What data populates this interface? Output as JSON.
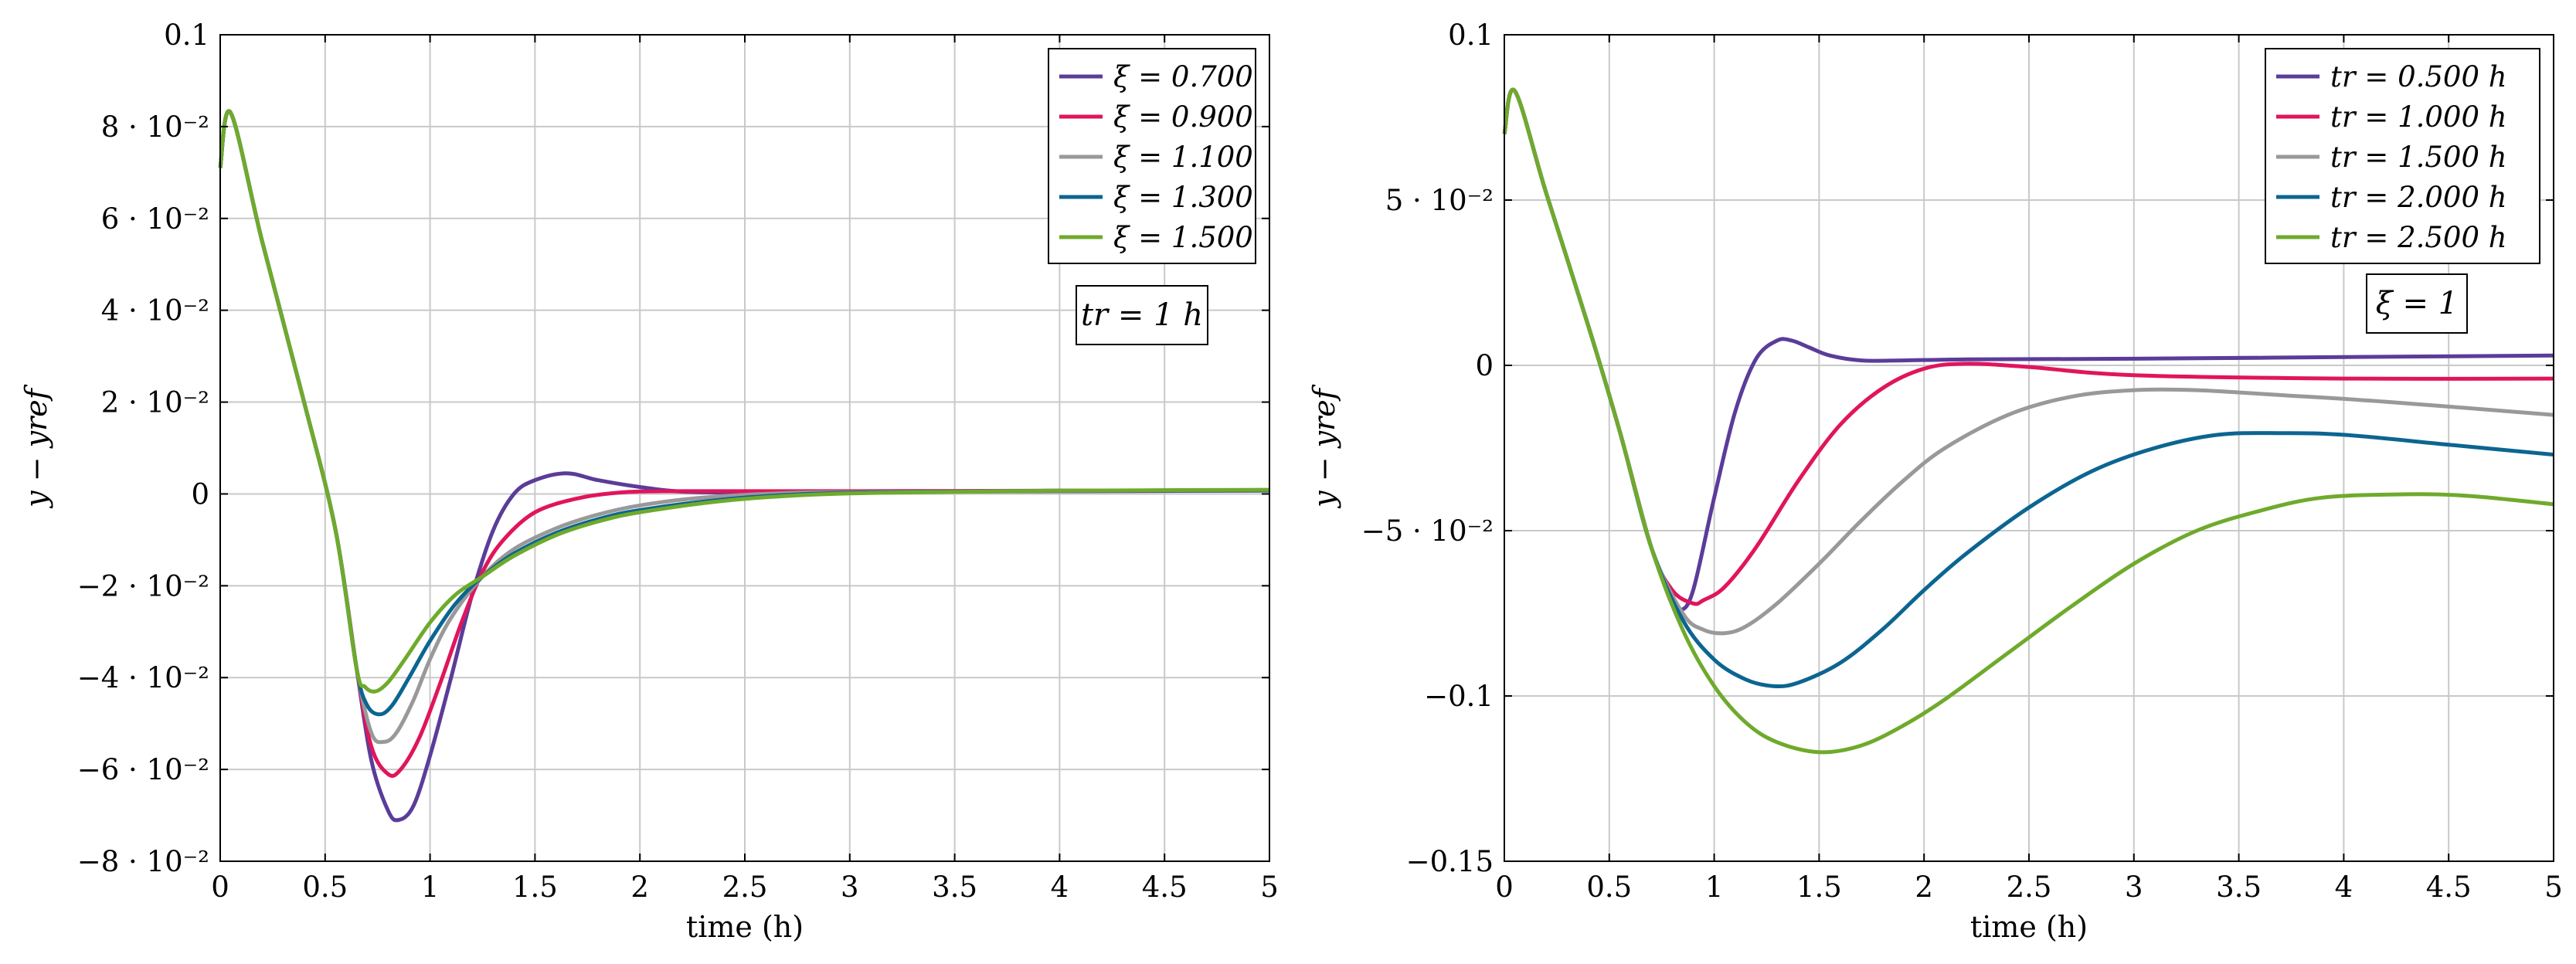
{
  "colors": {
    "purple": "#5b3c99",
    "pink": "#e0155c",
    "gray": "#999999",
    "blue": "#0c6591",
    "green": "#6faa2c",
    "grid": "#c9c9c9"
  },
  "chart_data": [
    {
      "type": "line",
      "xlabel": "time (h)",
      "ylabel": "y − yref",
      "xlim": [
        0,
        5
      ],
      "ylim": [
        -0.08,
        0.1
      ],
      "grid": true,
      "legend_position": "top-right",
      "xticks": [
        "0",
        "0.5",
        "1",
        "1.5",
        "2",
        "2.5",
        "3",
        "3.5",
        "4",
        "4.5",
        "5"
      ],
      "yticks": [
        "0.1",
        "8 · 10⁻²",
        "6 · 10⁻²",
        "4 · 10⁻²",
        "2 · 10⁻²",
        "0",
        "−2 · 10⁻²",
        "−4 · 10⁻²",
        "−6 · 10⁻²",
        "−8 · 10⁻²"
      ],
      "annotation": "tr = 1 h",
      "series": [
        {
          "name": "ξ = 0.700",
          "color": "#5b3c99",
          "x": [
            0,
            0.05,
            0.2,
            0.4,
            0.55,
            0.65,
            0.72,
            0.8,
            0.85,
            0.92,
            1.0,
            1.1,
            1.2,
            1.3,
            1.4,
            1.5,
            1.65,
            1.8,
            2.0,
            2.2,
            2.5,
            3.0,
            3.5,
            4.0,
            5.0
          ],
          "y": [
            0.071,
            0.083,
            0.055,
            0.02,
            -0.008,
            -0.038,
            -0.058,
            -0.069,
            -0.071,
            -0.068,
            -0.057,
            -0.04,
            -0.022,
            -0.008,
            0.0,
            0.003,
            0.0045,
            0.003,
            0.0015,
            0.0005,
            0.0003,
            0.0004,
            0.0005,
            0.0006,
            0.0007
          ]
        },
        {
          "name": "ξ = 0.900",
          "color": "#e0155c",
          "x": [
            0,
            0.05,
            0.2,
            0.4,
            0.55,
            0.65,
            0.72,
            0.8,
            0.86,
            0.95,
            1.05,
            1.15,
            1.25,
            1.35,
            1.5,
            1.7,
            1.9,
            2.1,
            2.5,
            3.0,
            4.0,
            5.0
          ],
          "y": [
            0.071,
            0.083,
            0.055,
            0.02,
            -0.008,
            -0.038,
            -0.055,
            -0.061,
            -0.06,
            -0.053,
            -0.041,
            -0.028,
            -0.017,
            -0.01,
            -0.004,
            -0.001,
            0.0003,
            0.0006,
            0.0006,
            0.0006,
            0.0007,
            0.0008
          ]
        },
        {
          "name": "ξ = 1.100",
          "color": "#999999",
          "x": [
            0,
            0.05,
            0.2,
            0.4,
            0.55,
            0.65,
            0.72,
            0.78,
            0.84,
            0.92,
            1.0,
            1.1,
            1.25,
            1.4,
            1.6,
            1.8,
            2.0,
            2.3,
            2.7,
            3.0,
            4.0,
            5.0
          ],
          "y": [
            0.071,
            0.083,
            0.055,
            0.02,
            -0.008,
            -0.038,
            -0.052,
            -0.054,
            -0.052,
            -0.045,
            -0.036,
            -0.027,
            -0.018,
            -0.012,
            -0.0075,
            -0.0045,
            -0.0025,
            -0.0008,
            0.0002,
            0.0004,
            0.0007,
            0.0008
          ]
        },
        {
          "name": "ξ = 1.300",
          "color": "#0c6591",
          "x": [
            0,
            0.05,
            0.2,
            0.4,
            0.55,
            0.65,
            0.7,
            0.76,
            0.82,
            0.9,
            1.0,
            1.12,
            1.25,
            1.4,
            1.6,
            1.8,
            2.0,
            2.4,
            2.8,
            3.2,
            4.0,
            5.0
          ],
          "y": [
            0.071,
            0.083,
            0.055,
            0.02,
            -0.008,
            -0.038,
            -0.046,
            -0.048,
            -0.046,
            -0.04,
            -0.032,
            -0.024,
            -0.018,
            -0.013,
            -0.0085,
            -0.0055,
            -0.0035,
            -0.0012,
            0.0,
            0.0004,
            0.0007,
            0.0008
          ]
        },
        {
          "name": "ξ = 1.500",
          "color": "#6faa2c",
          "x": [
            0,
            0.05,
            0.2,
            0.4,
            0.55,
            0.65,
            0.69,
            0.74,
            0.8,
            0.88,
            1.0,
            1.12,
            1.25,
            1.4,
            1.6,
            1.8,
            2.0,
            2.4,
            2.8,
            3.2,
            4.0,
            5.0
          ],
          "y": [
            0.071,
            0.083,
            0.055,
            0.02,
            -0.008,
            -0.038,
            -0.042,
            -0.043,
            -0.041,
            -0.036,
            -0.028,
            -0.022,
            -0.018,
            -0.0135,
            -0.009,
            -0.006,
            -0.004,
            -0.0015,
            -0.0002,
            0.0003,
            0.0007,
            0.0009
          ]
        }
      ]
    },
    {
      "type": "line",
      "xlabel": "time (h)",
      "ylabel": "y − yref",
      "xlim": [
        0,
        5
      ],
      "ylim": [
        -0.15,
        0.1
      ],
      "grid": true,
      "legend_position": "top-right",
      "xticks": [
        "0",
        "0.5",
        "1",
        "1.5",
        "2",
        "2.5",
        "3",
        "3.5",
        "4",
        "4.5",
        "5"
      ],
      "yticks": [
        "0.1",
        "5 · 10⁻²",
        "0",
        "−5 · 10⁻²",
        "−0.1",
        "−0.15"
      ],
      "annotation": "ξ = 1",
      "series": [
        {
          "name": "tr = 0.500 h",
          "color": "#5b3c99",
          "x": [
            0,
            0.05,
            0.2,
            0.4,
            0.55,
            0.7,
            0.8,
            0.84,
            0.9,
            1.0,
            1.1,
            1.2,
            1.3,
            1.37,
            1.45,
            1.55,
            1.7,
            1.9,
            2.2,
            3.0,
            4.0,
            5.0
          ],
          "y": [
            0.07,
            0.083,
            0.052,
            0.012,
            -0.02,
            -0.055,
            -0.07,
            -0.074,
            -0.068,
            -0.04,
            -0.014,
            0.002,
            0.0075,
            0.0075,
            0.0055,
            0.003,
            0.0015,
            0.0015,
            0.0018,
            0.002,
            0.0025,
            0.003
          ]
        },
        {
          "name": "tr = 1.000 h",
          "color": "#e0155c",
          "x": [
            0,
            0.05,
            0.2,
            0.4,
            0.55,
            0.7,
            0.8,
            0.9,
            0.95,
            1.05,
            1.2,
            1.4,
            1.6,
            1.8,
            2.0,
            2.2,
            2.5,
            3.0,
            4.0,
            5.0
          ],
          "y": [
            0.07,
            0.083,
            0.052,
            0.012,
            -0.02,
            -0.055,
            -0.068,
            -0.072,
            -0.071,
            -0.067,
            -0.055,
            -0.035,
            -0.018,
            -0.007,
            -0.001,
            0.0005,
            -0.0005,
            -0.003,
            -0.004,
            -0.004
          ]
        },
        {
          "name": "tr = 1.500 h",
          "color": "#999999",
          "x": [
            0,
            0.05,
            0.2,
            0.4,
            0.55,
            0.7,
            0.85,
            0.95,
            1.05,
            1.15,
            1.3,
            1.5,
            1.7,
            1.9,
            2.1,
            2.4,
            2.7,
            3.0,
            3.3,
            3.7,
            4.2,
            5.0
          ],
          "y": [
            0.07,
            0.083,
            0.052,
            0.012,
            -0.02,
            -0.055,
            -0.075,
            -0.08,
            -0.081,
            -0.079,
            -0.072,
            -0.06,
            -0.047,
            -0.035,
            -0.025,
            -0.015,
            -0.0095,
            -0.0075,
            -0.0075,
            -0.009,
            -0.011,
            -0.015
          ]
        },
        {
          "name": "tr = 2.000 h",
          "color": "#0c6591",
          "x": [
            0,
            0.05,
            0.2,
            0.4,
            0.55,
            0.7,
            0.85,
            1.0,
            1.15,
            1.28,
            1.4,
            1.6,
            1.8,
            2.0,
            2.2,
            2.5,
            2.8,
            3.1,
            3.4,
            3.7,
            4.0,
            4.5,
            5.0
          ],
          "y": [
            0.07,
            0.083,
            0.052,
            0.012,
            -0.02,
            -0.055,
            -0.077,
            -0.089,
            -0.095,
            -0.097,
            -0.096,
            -0.09,
            -0.08,
            -0.068,
            -0.057,
            -0.043,
            -0.032,
            -0.025,
            -0.021,
            -0.0205,
            -0.021,
            -0.024,
            -0.027
          ]
        },
        {
          "name": "tr = 2.500 h",
          "color": "#6faa2c",
          "x": [
            0,
            0.05,
            0.2,
            0.4,
            0.55,
            0.7,
            0.85,
            1.0,
            1.15,
            1.3,
            1.5,
            1.7,
            1.9,
            2.1,
            2.4,
            2.7,
            3.0,
            3.3,
            3.6,
            3.9,
            4.3,
            4.6,
            5.0
          ],
          "y": [
            0.07,
            0.083,
            0.052,
            0.012,
            -0.02,
            -0.055,
            -0.08,
            -0.097,
            -0.108,
            -0.114,
            -0.117,
            -0.115,
            -0.109,
            -0.101,
            -0.087,
            -0.073,
            -0.06,
            -0.05,
            -0.044,
            -0.04,
            -0.039,
            -0.0395,
            -0.042
          ]
        }
      ]
    }
  ]
}
